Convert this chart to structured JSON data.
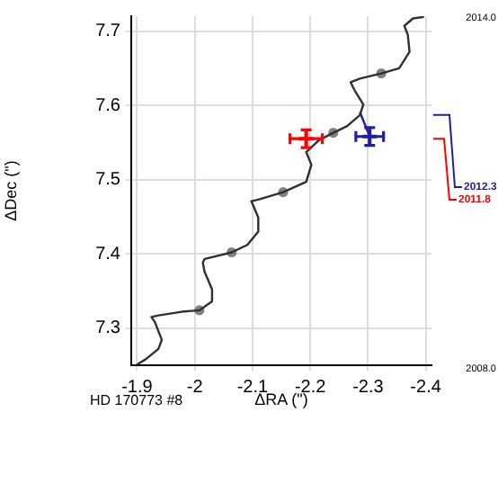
{
  "chart_data": {
    "type": "scatter",
    "xlabel": "ΔRA (\")",
    "ylabel": "ΔDec (\")",
    "xlim": [
      -1.89,
      -2.41
    ],
    "xticks": [
      -1.9,
      -2.0,
      -2.1,
      -2.2,
      -2.3,
      -2.4
    ],
    "ylim": [
      7.25,
      7.72
    ],
    "yticks": [
      7.3,
      7.4,
      7.5,
      7.6,
      7.7
    ],
    "grid": true,
    "legend": false,
    "annotations": [
      "HD 170773 #8",
      "2014.0",
      "2008.0"
    ],
    "series": [
      {
        "type": "line",
        "marker": "none",
        "color": "#303030",
        "x": [
          -1.9,
          -1.915,
          -1.937,
          -1.943,
          -1.931,
          -1.925,
          -1.937,
          -1.977,
          -2.008,
          -2.03,
          -2.03,
          -2.017,
          -2.014,
          -2.017,
          -2.064,
          -2.091,
          -2.11,
          -2.11,
          -2.098,
          -2.11,
          -2.153,
          -2.193,
          -2.202,
          -2.193,
          -2.215,
          -2.24,
          -2.264,
          -2.286,
          -2.292,
          -2.277,
          -2.27,
          -2.286,
          -2.323,
          -2.354,
          -2.372,
          -2.369,
          -2.363,
          -2.378,
          -2.397
        ],
        "values": [
          7.251,
          7.258,
          7.272,
          7.284,
          7.308,
          7.315,
          7.317,
          7.322,
          7.324,
          7.336,
          7.352,
          7.376,
          7.388,
          7.393,
          7.402,
          7.412,
          7.43,
          7.449,
          7.471,
          7.473,
          7.483,
          7.497,
          7.52,
          7.537,
          7.553,
          7.563,
          7.572,
          7.587,
          7.601,
          7.62,
          7.631,
          7.636,
          7.643,
          7.65,
          7.672,
          7.695,
          7.707,
          7.717,
          7.719
        ]
      },
      {
        "marker": "circle",
        "color": "#808080",
        "x": [
          -2.008,
          -2.064,
          -2.153,
          -2.24,
          -2.323
        ],
        "values": [
          7.324,
          7.402,
          7.483,
          7.563,
          7.643
        ]
      },
      {
        "type": "line",
        "color": "#2020a0",
        "x": [
          -2.303,
          -2.286
        ],
        "values": [
          7.558,
          7.591
        ]
      },
      {
        "marker": "cross",
        "name": "2011.8",
        "color": "#ff0000",
        "x": [
          -2.193
        ],
        "values": [
          7.555
        ],
        "errors": [
          0.012
        ],
        "xerrors": [
          0.028
        ]
      },
      {
        "marker": "cross",
        "name": "2012.3",
        "color": "#2020a0",
        "x": [
          -2.303
        ],
        "values": [
          7.558
        ],
        "errors": [
          0.012
        ],
        "xerrors": [
          0.024
        ]
      }
    ]
  }
}
